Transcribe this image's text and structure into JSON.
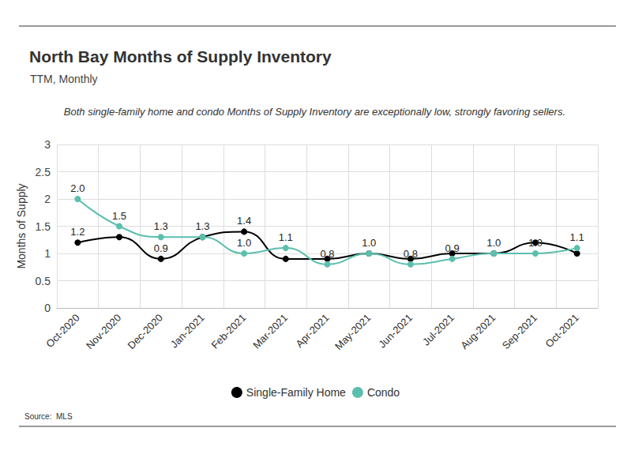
{
  "chart_data": {
    "type": "line",
    "title": "North Bay Months of Supply Inventory",
    "subtitle": "TTM, Monthly",
    "annotation": "Both single-family home and condo Months of Supply Inventory are exceptionally low, strongly favoring sellers.",
    "y_label": "Months of Supply",
    "source": "Source:  MLS",
    "categories": [
      "Oct-2020",
      "Nov-2020",
      "Dec-2020",
      "Jan-2021",
      "Feb-2021",
      "Mar-2021",
      "Apr-2021",
      "May-2021",
      "Jun-2021",
      "Jul-2021",
      "Aug-2021",
      "Sep-2021",
      "Oct-2021"
    ],
    "series": [
      {
        "name": "Single-Family Home",
        "color": "#000000",
        "marker": "circle",
        "line_style": "solid",
        "values": [
          1.2,
          1.3,
          0.9,
          1.3,
          1.4,
          0.9,
          0.9,
          1.0,
          0.9,
          1.0,
          1.0,
          1.2,
          1.0
        ],
        "value_labels": [
          "1.2",
          null,
          "0.9",
          null,
          "1.4",
          null,
          null,
          null,
          null,
          null,
          null,
          null,
          null
        ]
      },
      {
        "name": "Condo",
        "color": "#5bbfad",
        "marker": "circle",
        "line_style": "solid",
        "values": [
          2.0,
          1.5,
          1.3,
          1.3,
          1.0,
          1.1,
          0.8,
          1.0,
          0.8,
          0.9,
          1.0,
          1.0,
          1.1
        ],
        "value_labels": [
          "2.0",
          "1.5",
          "1.3",
          "1.3",
          "1.0",
          "1.1",
          "0.8",
          "1.0",
          "0.8",
          "0.9",
          "1.0",
          "1.0",
          "1.1"
        ]
      }
    ],
    "ylim": [
      0,
      3
    ],
    "yticks": [
      0,
      0.5,
      1,
      1.5,
      2,
      2.5,
      3
    ],
    "grid": true,
    "legend": "bottom",
    "data_labels": true
  }
}
